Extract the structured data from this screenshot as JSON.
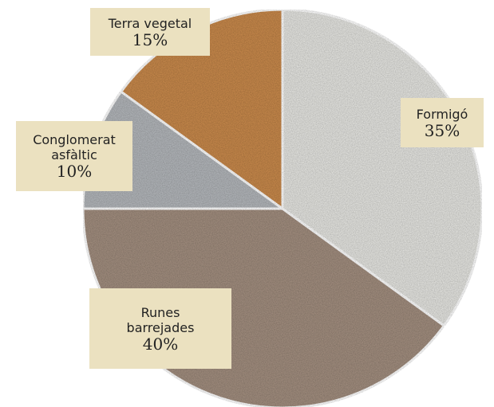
{
  "chart_data": {
    "type": "pie",
    "categories": [
      "Formigó",
      "Runes barrejades",
      "Conglomerat asfàltic",
      "Terra vegetal"
    ],
    "values": [
      35,
      40,
      10,
      15
    ],
    "value_labels": [
      "35%",
      "40%",
      "10%",
      "15%"
    ],
    "colors": [
      "#e6e6e2",
      "#a38f80",
      "#b4b7bb",
      "#c98a4e"
    ]
  }
}
